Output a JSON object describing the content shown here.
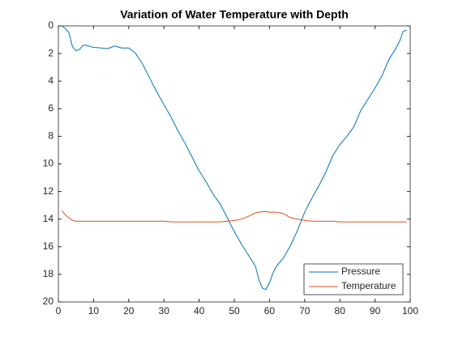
{
  "chart_data": {
    "type": "line",
    "title": "Variation of Water Temperature with Depth",
    "x": [
      1,
      2,
      3,
      4,
      5,
      6,
      7,
      8,
      9,
      10,
      12,
      14,
      16,
      18,
      20,
      22,
      24,
      26,
      28,
      30,
      32,
      34,
      36,
      38,
      40,
      42,
      44,
      46,
      48,
      50,
      52,
      54,
      56,
      57,
      58,
      59,
      60,
      61,
      62,
      64,
      66,
      68,
      70,
      72,
      74,
      76,
      78,
      80,
      82,
      84,
      86,
      88,
      90,
      92,
      94,
      96,
      97,
      98,
      99
    ],
    "series": [
      {
        "name": "Pressure",
        "color": "#0072BD",
        "values": [
          0,
          0.2,
          0.5,
          1.5,
          1.8,
          1.7,
          1.4,
          1.4,
          1.5,
          1.55,
          1.6,
          1.65,
          1.45,
          1.6,
          1.6,
          2.0,
          2.8,
          3.8,
          4.8,
          5.7,
          6.6,
          7.6,
          8.5,
          9.5,
          10.5,
          11.3,
          12.2,
          12.9,
          13.9,
          14.9,
          15.8,
          16.6,
          17.4,
          18.4,
          19.0,
          19.1,
          18.6,
          17.9,
          17.4,
          16.8,
          15.9,
          14.8,
          13.5,
          12.5,
          11.6,
          10.6,
          9.4,
          8.6,
          8.0,
          7.3,
          6.1,
          5.3,
          4.5,
          3.6,
          2.4,
          1.6,
          1.1,
          0.4,
          0.3
        ]
      },
      {
        "name": "Temperature",
        "color": "#D95319",
        "values": [
          13.4,
          13.7,
          13.9,
          14.1,
          14.15,
          14.15,
          14.15,
          14.15,
          14.15,
          14.15,
          14.15,
          14.15,
          14.15,
          14.15,
          14.15,
          14.15,
          14.15,
          14.15,
          14.15,
          14.15,
          14.2,
          14.2,
          14.2,
          14.2,
          14.2,
          14.2,
          14.2,
          14.2,
          14.15,
          14.1,
          14.0,
          13.8,
          13.55,
          13.5,
          13.45,
          13.45,
          13.5,
          13.5,
          13.5,
          13.6,
          13.9,
          14.0,
          14.1,
          14.15,
          14.15,
          14.15,
          14.15,
          14.2,
          14.2,
          14.2,
          14.2,
          14.2,
          14.2,
          14.2,
          14.2,
          14.2,
          14.2,
          14.2,
          14.2
        ]
      }
    ],
    "xlim": [
      0,
      100
    ],
    "xticks": [
      0,
      10,
      20,
      30,
      40,
      50,
      60,
      70,
      80,
      90,
      100
    ],
    "ylim": [
      0,
      20
    ],
    "yticks": [
      0,
      2,
      4,
      6,
      8,
      10,
      12,
      14,
      16,
      18,
      20
    ],
    "y_reversed": true,
    "legend": "lower right"
  }
}
